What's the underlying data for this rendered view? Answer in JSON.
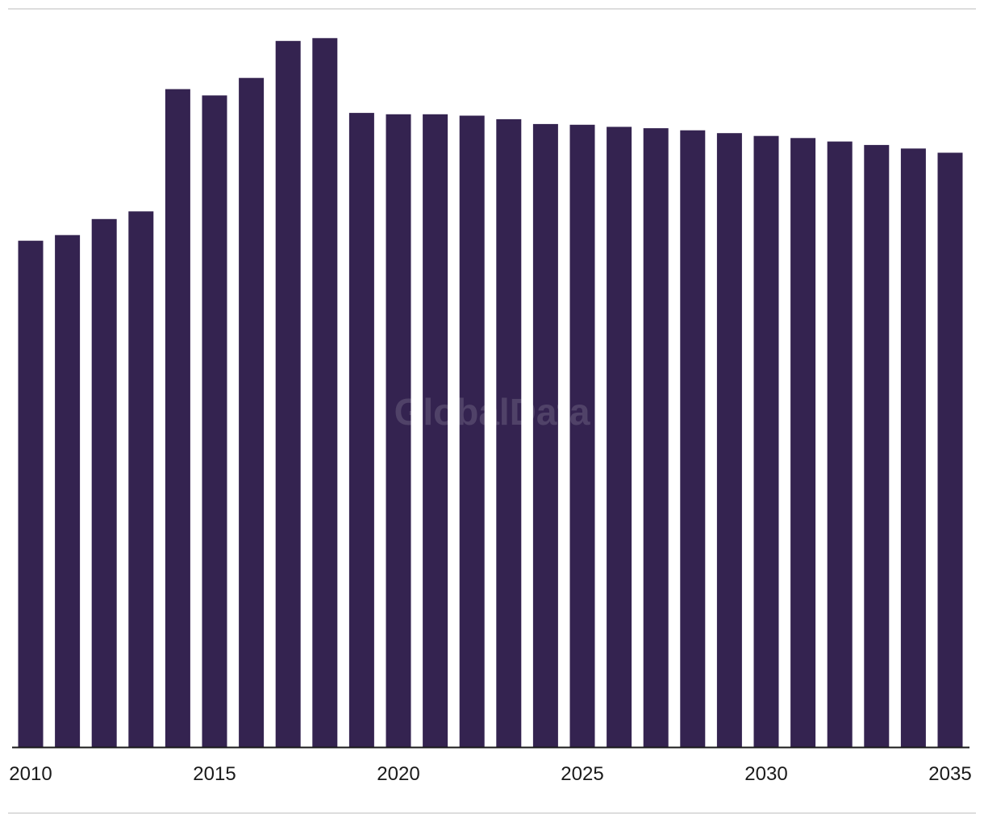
{
  "chart_data": {
    "type": "bar",
    "categories": [
      "2010",
      "2011",
      "2012",
      "2013",
      "2014",
      "2015",
      "2016",
      "2017",
      "2018",
      "2019",
      "2020",
      "2021",
      "2022",
      "2023",
      "2024",
      "2025",
      "2026",
      "2027",
      "2028",
      "2029",
      "2030",
      "2031",
      "2032",
      "2033",
      "2034",
      "2035"
    ],
    "values": [
      72.5,
      73.3,
      75.6,
      76.7,
      94.2,
      93.3,
      95.8,
      101.1,
      101.5,
      90.8,
      90.6,
      90.6,
      90.4,
      89.9,
      89.2,
      89.1,
      88.8,
      88.6,
      88.3,
      87.9,
      87.5,
      87.2,
      86.7,
      86.2,
      85.7,
      85.1
    ],
    "x_tick_labels": [
      "2010",
      "2015",
      "2020",
      "2025",
      "2030",
      "2035"
    ],
    "title": "",
    "xlabel": "",
    "ylabel": "",
    "ylim": [
      0,
      102
    ],
    "grid": false,
    "legend": "none",
    "bar_color": "#342350",
    "axis_color": "#1a1a1a",
    "rule_color": "#dddddd"
  },
  "watermark": "GlobalData"
}
